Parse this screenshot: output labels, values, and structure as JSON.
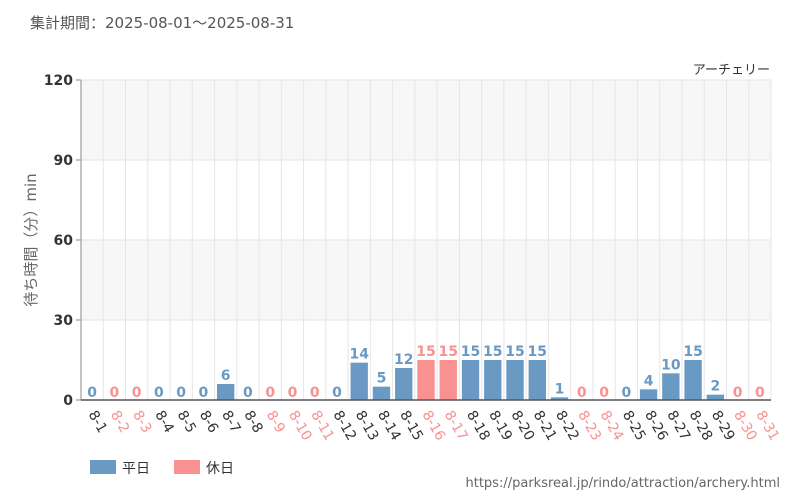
{
  "period_label": "集計期間：2025-08-01～2025-08-31",
  "source_url": "https://parksreal.jp/rindo/attraction/archery.html",
  "colors": {
    "weekday": "#6a9ac4",
    "holiday": "#f99191",
    "grid": "#e6e6e6",
    "band": "#f7f7f7"
  },
  "chart_data": {
    "type": "bar",
    "series_name": "アーチェリー",
    "ylabel": "待ち時間（分）min",
    "ylim": [
      0,
      120
    ],
    "yticks": [
      0,
      30,
      60,
      90,
      120
    ],
    "grid": true,
    "legend_position": "bottom-left",
    "legend": [
      {
        "key": "weekday",
        "label": "平日"
      },
      {
        "key": "holiday",
        "label": "休日"
      }
    ],
    "categories": [
      "8-1",
      "8-2",
      "8-3",
      "8-4",
      "8-5",
      "8-6",
      "8-7",
      "8-8",
      "8-9",
      "8-10",
      "8-11",
      "8-12",
      "8-13",
      "8-14",
      "8-15",
      "8-16",
      "8-17",
      "8-18",
      "8-19",
      "8-20",
      "8-21",
      "8-22",
      "8-23",
      "8-24",
      "8-25",
      "8-26",
      "8-27",
      "8-28",
      "8-29",
      "8-30",
      "8-31"
    ],
    "values": [
      0,
      0,
      0,
      0,
      0,
      0,
      6,
      0,
      0,
      0,
      0,
      0,
      14,
      5,
      12,
      15,
      15,
      15,
      15,
      15,
      15,
      1,
      0,
      0,
      0,
      4,
      10,
      15,
      2,
      0,
      0
    ],
    "day_type": [
      "weekday",
      "holiday",
      "holiday",
      "weekday",
      "weekday",
      "weekday",
      "weekday",
      "weekday",
      "holiday",
      "holiday",
      "holiday",
      "weekday",
      "weekday",
      "weekday",
      "weekday",
      "holiday",
      "holiday",
      "weekday",
      "weekday",
      "weekday",
      "weekday",
      "weekday",
      "holiday",
      "holiday",
      "weekday",
      "weekday",
      "weekday",
      "weekday",
      "weekday",
      "holiday",
      "holiday"
    ]
  }
}
